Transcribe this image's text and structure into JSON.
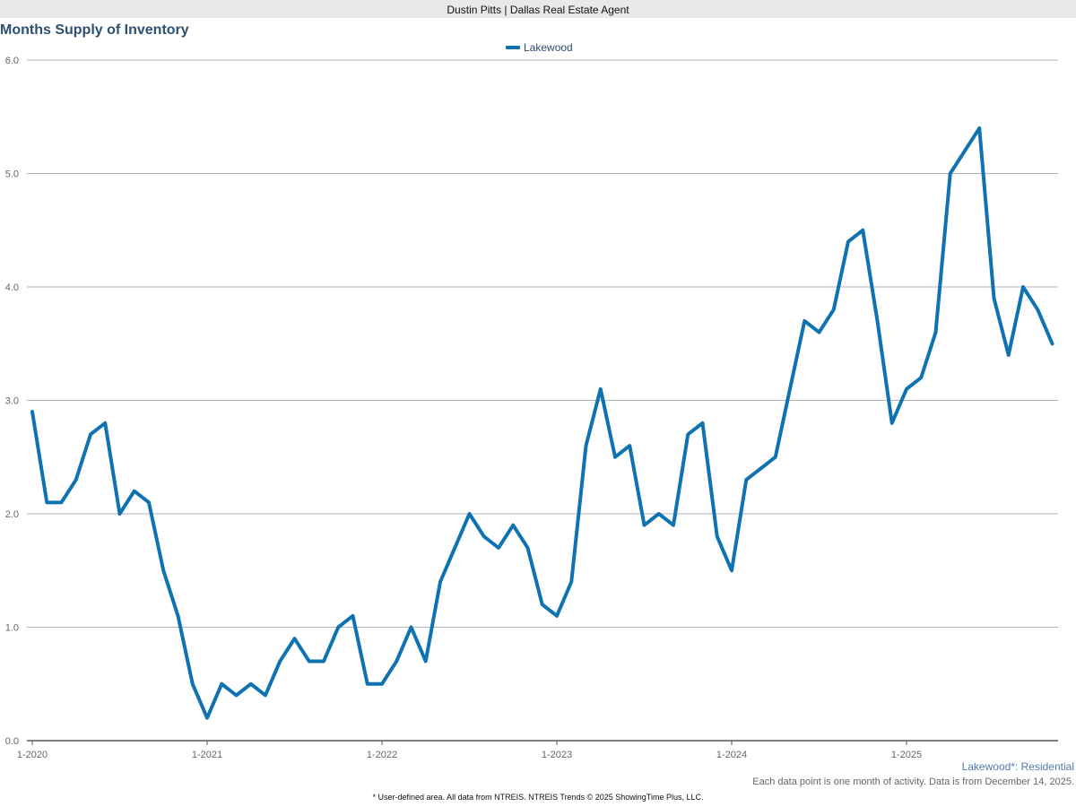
{
  "header": {
    "title": "Dustin Pitts | Dallas Real Estate Agent"
  },
  "chart_data": {
    "type": "line",
    "title": "Months Supply of Inventory",
    "xlabel": "",
    "ylabel": "",
    "ylim": [
      0,
      6
    ],
    "y_ticks": [
      "0.0",
      "1.0",
      "2.0",
      "3.0",
      "4.0",
      "5.0",
      "6.0"
    ],
    "x_tick_labels": [
      "1-2020",
      "1-2021",
      "1-2022",
      "1-2023",
      "1-2024",
      "1-2025"
    ],
    "grid": true,
    "legend_position": "top-center",
    "start_month": "2020-01",
    "series": [
      {
        "name": "Lakewood",
        "color": "#0f72b1",
        "values": [
          2.9,
          2.1,
          2.1,
          2.3,
          2.7,
          2.8,
          2.0,
          2.2,
          2.1,
          1.5,
          1.1,
          0.5,
          0.2,
          0.5,
          0.4,
          0.5,
          0.4,
          0.7,
          0.9,
          0.7,
          0.7,
          1.0,
          1.1,
          0.5,
          0.5,
          0.7,
          1.0,
          0.7,
          1.4,
          1.7,
          2.0,
          1.8,
          1.7,
          1.9,
          1.7,
          1.2,
          1.1,
          1.4,
          2.6,
          3.1,
          2.5,
          2.6,
          1.9,
          2.0,
          1.9,
          2.7,
          2.8,
          1.8,
          1.5,
          2.3,
          2.4,
          2.5,
          3.1,
          3.7,
          3.6,
          3.8,
          4.4,
          4.5,
          3.7,
          2.8,
          3.1,
          3.2,
          3.6,
          5.0,
          5.2,
          5.4,
          3.9,
          3.4,
          4.0,
          3.8,
          3.5
        ]
      }
    ]
  },
  "footer": {
    "subtitle": "Lakewood*: Residential",
    "note": "Each data point is one month of activity. Data is from December 14, 2025.",
    "credit": "* User-defined area. All data from NTREIS. NTREIS Trends © 2025 ShowingTime Plus, LLC."
  }
}
